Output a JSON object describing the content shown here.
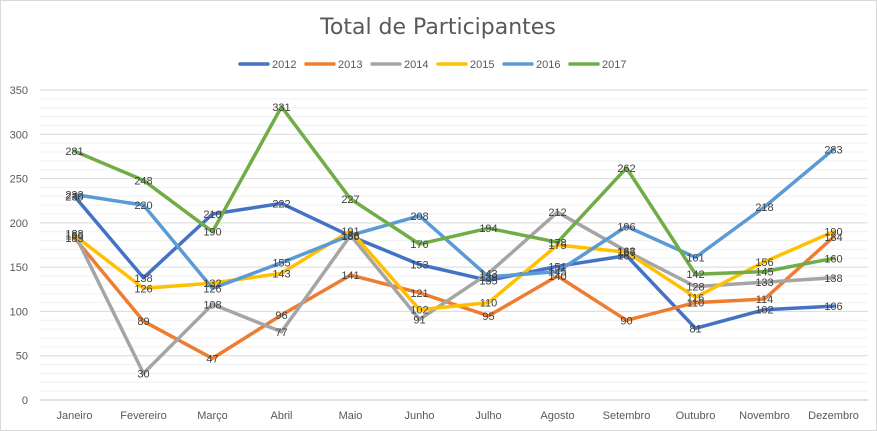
{
  "chart_data": {
    "type": "line",
    "title": "Total de Participantes",
    "xlabel": "",
    "ylabel": "",
    "ylim": [
      0,
      350
    ],
    "yticks": [
      0,
      50,
      100,
      150,
      200,
      250,
      300,
      350
    ],
    "grid": true,
    "legend_position": "top",
    "categories": [
      "Janeiro",
      "Fevereiro",
      "Março",
      "Abril",
      "Maio",
      "Junho",
      "Julho",
      "Agosto",
      "Setembro",
      "Outubro",
      "Novembro",
      "Dezembro"
    ],
    "series": [
      {
        "name": "2012",
        "color": "#4472c4",
        "values": [
          230,
          138,
          210,
          222,
          185,
          153,
          135,
          151,
          163,
          81,
          102,
          106
        ]
      },
      {
        "name": "2013",
        "color": "#ed7d31",
        "values": [
          183,
          89,
          47,
          96,
          141,
          121,
          95,
          140,
          90,
          110,
          114,
          184
        ]
      },
      {
        "name": "2014",
        "color": "#a5a5a5",
        "values": [
          188,
          30,
          108,
          77,
          186,
          91,
          143,
          212,
          168,
          128,
          133,
          138
        ]
      },
      {
        "name": "2015",
        "color": "#ffc000",
        "values": [
          186,
          126,
          132,
          143,
          191,
          102,
          110,
          175,
          167,
          116,
          156,
          190
        ]
      },
      {
        "name": "2016",
        "color": "#5b9bd5",
        "values": [
          232,
          220,
          126,
          155,
          186,
          208,
          139,
          145,
          196,
          161,
          218,
          283
        ]
      },
      {
        "name": "2017",
        "color": "#70ad47",
        "values": [
          281,
          248,
          190,
          331,
          227,
          176,
          194,
          178,
          262,
          142,
          145,
          160
        ]
      }
    ]
  }
}
